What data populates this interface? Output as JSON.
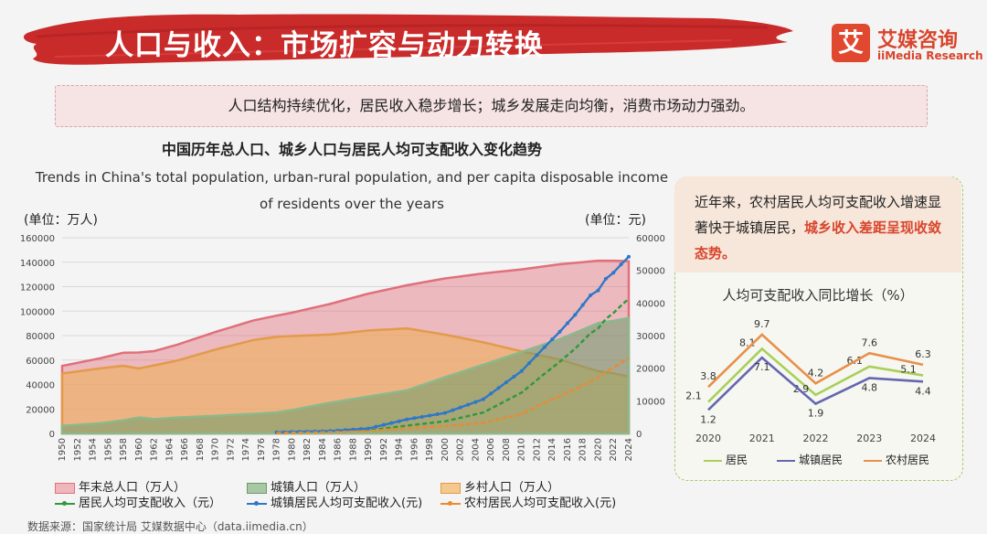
{
  "header": {
    "title": "人口与收入：市场扩容与动力转换"
  },
  "logo": {
    "mark": "艾",
    "name_cn": "艾媒咨询",
    "name_en": "iiMedia Research"
  },
  "summary": "人口结构持续优化，居民收入稳步增长；城乡发展走向均衡，消费市场动力强劲。",
  "side_note": {
    "text_before": "近年来，农村居民人均可支配收入增速显著快于城镇居民，",
    "highlight": "城乡收入差距呈现收敛态势。"
  },
  "source": "数据来源：国家统计局 艾媒数据中心（data.iimedia.cn）",
  "colors": {
    "accent_red": "#d8452c",
    "total_pop": "#e0707c",
    "urban_pop": "#8bb98b",
    "rural_pop": "#f0b068",
    "income_all": "#2e9a3a",
    "income_urban": "#2d78c8",
    "income_rural": "#ec8a2c",
    "side_all": "#a9cf5a",
    "side_urban": "#6466b0",
    "side_rural": "#e8904a"
  },
  "chart_data": [
    {
      "type": "area",
      "title": "中国历年总人口、城乡人口与居民人均可支配收入变化趋势",
      "subtitle": "Trends in China's total population, urban-rural population, and per capita disposable income of residents over the years",
      "ylabel": "(单位：万人)",
      "y2label": "(单位：元)",
      "ylim": [
        0,
        160000
      ],
      "y2lim": [
        0,
        60000
      ],
      "yticks": [
        0,
        20000,
        40000,
        60000,
        80000,
        100000,
        120000,
        140000,
        160000
      ],
      "y2ticks": [
        0,
        10000,
        20000,
        30000,
        40000,
        50000,
        60000
      ],
      "xlim": [
        1950,
        2024
      ],
      "xticks": [
        1950,
        1952,
        1954,
        1956,
        1958,
        1960,
        1962,
        1964,
        1966,
        1968,
        1970,
        1972,
        1974,
        1976,
        1978,
        1980,
        1982,
        1984,
        1986,
        1988,
        1990,
        1992,
        1994,
        1996,
        1998,
        2000,
        2002,
        2004,
        2006,
        2008,
        2010,
        2012,
        2014,
        2016,
        2018,
        2020,
        2022,
        2024
      ],
      "grid": true,
      "legend_position": "bottom",
      "series": [
        {
          "name": "年末总人口（万人）",
          "kind": "area",
          "axis": "left",
          "x": [
            1950,
            1955,
            1958,
            1960,
            1962,
            1965,
            1970,
            1975,
            1978,
            1980,
            1985,
            1990,
            1995,
            2000,
            2005,
            2010,
            2015,
            2020,
            2022,
            2024
          ],
          "y": [
            55200,
            61500,
            66000,
            66200,
            67300,
            72500,
            82900,
            92400,
            96300,
            98700,
            105900,
            114300,
            121100,
            126700,
            130800,
            134100,
            138300,
            141200,
            141200,
            140800
          ]
        },
        {
          "name": "城镇人口（万人）",
          "kind": "area",
          "axis": "left",
          "x": [
            1950,
            1955,
            1958,
            1960,
            1962,
            1965,
            1970,
            1975,
            1978,
            1980,
            1985,
            1990,
            1995,
            2000,
            2005,
            2010,
            2015,
            2020,
            2022,
            2024
          ],
          "y": [
            6200,
            8300,
            10700,
            13100,
            11700,
            13000,
            14400,
            16000,
            17200,
            19100,
            25100,
            30200,
            35200,
            45900,
            56200,
            66600,
            77100,
            90200,
            92100,
            94300
          ]
        },
        {
          "name": "乡村人口（万人）",
          "kind": "area",
          "axis": "left",
          "x": [
            1950,
            1955,
            1958,
            1960,
            1962,
            1965,
            1970,
            1975,
            1978,
            1980,
            1985,
            1990,
            1995,
            2000,
            2005,
            2010,
            2015,
            2020,
            2022,
            2024
          ],
          "y": [
            49000,
            53200,
            55300,
            53100,
            55600,
            59500,
            68500,
            76400,
            79000,
            79600,
            80800,
            84100,
            85900,
            80800,
            74500,
            67100,
            60300,
            50900,
            49100,
            46500
          ]
        },
        {
          "name": "居民人均可支配收入（元）",
          "kind": "line",
          "axis": "right",
          "x": [
            1978,
            1985,
            1990,
            1995,
            2000,
            2005,
            2010,
            2013,
            2015,
            2017,
            2019,
            2020,
            2021,
            2022,
            2023,
            2024
          ],
          "y": [
            180,
            450,
            900,
            2400,
            3700,
            6400,
            12500,
            18300,
            22000,
            26000,
            30700,
            32200,
            35100,
            36900,
            39200,
            41300
          ]
        },
        {
          "name": "城镇居民人均可支配收入(元)",
          "kind": "line",
          "axis": "right",
          "x": [
            1978,
            1985,
            1990,
            1995,
            2000,
            2005,
            2010,
            2013,
            2015,
            2017,
            2019,
            2020,
            2021,
            2022,
            2023,
            2024
          ],
          "y": [
            343,
            739,
            1510,
            4283,
            6280,
            10493,
            19109,
            26467,
            31195,
            36396,
            42359,
            43834,
            47412,
            49283,
            51821,
            54188
          ]
        },
        {
          "name": "农村居民人均可支配收入(元)",
          "kind": "line",
          "axis": "right",
          "x": [
            1978,
            1985,
            1990,
            1995,
            2000,
            2005,
            2010,
            2013,
            2015,
            2017,
            2019,
            2020,
            2021,
            2022,
            2023,
            2024
          ],
          "y": [
            134,
            398,
            686,
            1578,
            2253,
            3255,
            5919,
            9430,
            11422,
            13432,
            16021,
            17131,
            18931,
            20133,
            21691,
            23119
          ]
        }
      ]
    },
    {
      "type": "line",
      "title": "人均可支配收入同比增长（%）",
      "categories": [
        "2020",
        "2021",
        "2022",
        "2023",
        "2024"
      ],
      "legend_position": "bottom",
      "series": [
        {
          "name": "居民",
          "values": [
            2.1,
            8.1,
            2.9,
            6.1,
            5.1
          ]
        },
        {
          "name": "城镇居民",
          "values": [
            1.2,
            7.1,
            1.9,
            4.8,
            4.4
          ]
        },
        {
          "name": "农村居民",
          "values": [
            3.8,
            9.7,
            4.2,
            7.6,
            6.3
          ]
        }
      ]
    }
  ]
}
